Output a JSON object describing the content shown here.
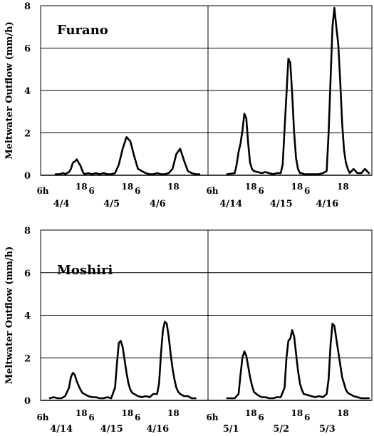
{
  "chart_data": [
    {
      "type": "line",
      "title": "Furano",
      "ylabel": "Meltwater Outflow (mm/h)",
      "ylim": [
        0,
        8
      ],
      "yticks": [
        0,
        2,
        4,
        6,
        8
      ],
      "grid": true,
      "segments": [
        {
          "hour_labels": [
            "6h",
            "18",
            "6",
            "18",
            "6",
            "18"
          ],
          "date_labels": [
            "4/4",
            "4/5",
            "4/6"
          ],
          "series": [
            {
              "x": [
                3,
                5,
                7,
                8,
                10,
                11,
                12,
                13,
                14,
                15,
                16,
                17,
                18,
                20,
                22,
                24,
                26,
                28,
                30,
                32,
                34,
                36,
                38,
                40,
                42,
                44,
                46,
                48,
                50,
                52,
                54,
                56,
                58,
                60,
                62,
                64,
                66,
                68,
                70,
                72,
                74,
                76,
                78
              ],
              "y": [
                0.05,
                0.05,
                0.1,
                0.05,
                0.15,
                0.3,
                0.6,
                0.65,
                0.75,
                0.6,
                0.45,
                0.2,
                0.05,
                0.1,
                0.05,
                0.1,
                0.05,
                0.1,
                0.05,
                0.05,
                0.1,
                0.5,
                1.25,
                1.8,
                1.6,
                0.9,
                0.3,
                0.2,
                0.1,
                0.05,
                0.05,
                0.1,
                0.05,
                0.05,
                0.1,
                0.3,
                1.0,
                1.25,
                0.7,
                0.2,
                0.1,
                0.05,
                0.05
              ]
            }
          ]
        },
        {
          "hour_labels": [
            "6h",
            "18",
            "6",
            "18",
            "6",
            "18"
          ],
          "date_labels": [
            "4/14",
            "4/15",
            "4/16"
          ],
          "series": [
            {
              "x": [
                4,
                8,
                9,
                10,
                11,
                12,
                13,
                14,
                15,
                16,
                17,
                18,
                20,
                22,
                24,
                26,
                28,
                30,
                32,
                33,
                34,
                35,
                36,
                37,
                38,
                39,
                40,
                41,
                42,
                43,
                44,
                46,
                48,
                50,
                52,
                54,
                56,
                57,
                58,
                59,
                60,
                61,
                62,
                63,
                64,
                65,
                66,
                67,
                68,
                70,
                72,
                74,
                76,
                78
              ],
              "y": [
                0.05,
                0.1,
                0.5,
                1.1,
                1.5,
                2.1,
                2.9,
                2.7,
                1.5,
                0.6,
                0.3,
                0.2,
                0.15,
                0.1,
                0.15,
                0.1,
                0.05,
                0.1,
                0.1,
                0.5,
                2.2,
                3.8,
                5.5,
                5.3,
                3.8,
                2.0,
                0.8,
                0.3,
                0.1,
                0.1,
                0.05,
                0.05,
                0.05,
                0.05,
                0.05,
                0.1,
                0.2,
                2.0,
                4.5,
                7.0,
                7.9,
                7.0,
                6.2,
                4.5,
                2.5,
                1.2,
                0.6,
                0.3,
                0.1,
                0.3,
                0.1,
                0.1,
                0.3,
                0.1
              ]
            }
          ]
        }
      ]
    },
    {
      "type": "line",
      "title": "Moshiri",
      "ylabel": "Meltwater Outflow (mm/h)",
      "ylim": [
        0,
        8
      ],
      "yticks": [
        0,
        2,
        4,
        6,
        8
      ],
      "grid": true,
      "segments": [
        {
          "hour_labels": [
            "6h",
            "18",
            "6",
            "18",
            "6",
            "18"
          ],
          "date_labels": [
            "4/14",
            "4/15",
            "4/16"
          ],
          "series": [
            {
              "x": [
                0,
                2,
                4,
                6,
                8,
                10,
                11,
                12,
                13,
                14,
                15,
                16,
                17,
                18,
                20,
                22,
                24,
                26,
                28,
                30,
                32,
                34,
                35,
                36,
                37,
                38,
                39,
                40,
                41,
                42,
                43,
                44,
                46,
                48,
                50,
                52,
                54,
                56,
                57,
                58,
                59,
                60,
                61,
                62,
                63,
                64,
                65,
                66,
                67,
                68,
                70,
                72,
                74,
                76
              ],
              "y": [
                0.1,
                0.15,
                0.1,
                0.1,
                0.2,
                0.6,
                1.1,
                1.3,
                1.2,
                0.9,
                0.7,
                0.5,
                0.35,
                0.3,
                0.2,
                0.15,
                0.15,
                0.1,
                0.1,
                0.15,
                0.1,
                0.6,
                1.7,
                2.7,
                2.8,
                2.5,
                1.9,
                1.3,
                0.8,
                0.5,
                0.35,
                0.3,
                0.2,
                0.15,
                0.2,
                0.15,
                0.3,
                0.3,
                0.8,
                2.2,
                3.3,
                3.7,
                3.6,
                3.0,
                2.2,
                1.5,
                1.0,
                0.6,
                0.4,
                0.3,
                0.2,
                0.2,
                0.1,
                0.1
              ]
            }
          ]
        },
        {
          "hour_labels": [
            "6h",
            "18",
            "6",
            "18",
            "6",
            "18"
          ],
          "date_labels": [
            "5/1",
            "5/2",
            "5/3"
          ],
          "series": [
            {
              "x": [
                4,
                6,
                8,
                9,
                10,
                11,
                12,
                13,
                14,
                15,
                16,
                17,
                18,
                20,
                22,
                24,
                26,
                28,
                30,
                32,
                34,
                35,
                36,
                37,
                38,
                39,
                40,
                41,
                42,
                43,
                44,
                46,
                48,
                50,
                52,
                54,
                56,
                57,
                58,
                59,
                60,
                61,
                62,
                63,
                64,
                65,
                66,
                67,
                68,
                70,
                72,
                74,
                76,
                78
              ],
              "y": [
                0.1,
                0.1,
                0.1,
                0.2,
                0.3,
                1.2,
                2.0,
                2.3,
                2.1,
                1.6,
                1.1,
                0.7,
                0.4,
                0.25,
                0.15,
                0.15,
                0.1,
                0.1,
                0.15,
                0.15,
                0.6,
                2.0,
                2.8,
                2.9,
                3.3,
                3.0,
                2.2,
                1.4,
                0.8,
                0.5,
                0.3,
                0.25,
                0.2,
                0.15,
                0.2,
                0.15,
                0.3,
                1.0,
                2.6,
                3.6,
                3.5,
                2.9,
                2.3,
                1.7,
                1.1,
                0.8,
                0.5,
                0.35,
                0.3,
                0.2,
                0.15,
                0.1,
                0.1,
                0.1
              ]
            }
          ]
        }
      ]
    }
  ]
}
